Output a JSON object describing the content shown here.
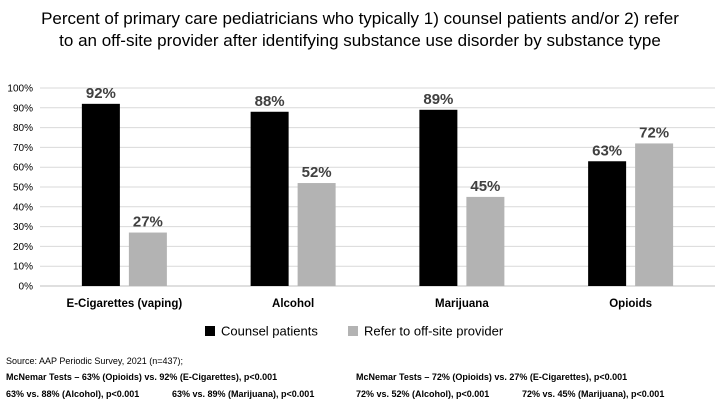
{
  "chart_data": {
    "type": "bar",
    "title": "Percent of primary care pediatricians who typically 1) counsel patients and/or 2) refer to an off-site provider after identifying substance use disorder by substance type",
    "categories": [
      "E-Cigarettes (vaping)",
      "Alcohol",
      "Marijuana",
      "Opioids"
    ],
    "series": [
      {
        "name": "Counsel patients",
        "values": [
          92,
          88,
          89,
          63
        ],
        "data_labels": [
          "92%",
          "88%",
          "89%",
          "63%"
        ],
        "color": "#000000"
      },
      {
        "name": "Refer to off-site provider",
        "values": [
          27,
          52,
          45,
          72
        ],
        "data_labels": [
          "27%",
          "52%",
          "45%",
          "72%"
        ],
        "color": "#b3b3b3"
      }
    ],
    "ylim": [
      0,
      100
    ],
    "yticks": [
      0,
      10,
      20,
      30,
      40,
      50,
      60,
      70,
      80,
      90,
      100
    ],
    "ytick_labels": [
      "0%",
      "10%",
      "20%",
      "30%",
      "40%",
      "50%",
      "60%",
      "70%",
      "80%",
      "90%",
      "100%"
    ],
    "xlabel": "",
    "ylabel": "",
    "grid": true,
    "legend_position": "bottom"
  },
  "footnotes": {
    "source": "Source: AAP Periodic Survey, 2021 (n=437);",
    "left_line1": "McNemar Tests – 63% (Opioids) vs. 92% (E-Cigarettes), p<0.001",
    "left_line2a": "63% vs. 88% (Alcohol), p<0.001",
    "left_line2b": "63% vs. 89% (Marijuana), p<0.001",
    "right_line1": "McNemar Tests – 72% (Opioids) vs. 27% (E-Cigarettes), p<0.001",
    "right_line2a": "72% vs. 52% (Alcohol), p<0.001",
    "right_line2b": "72% vs. 45% (Marijuana), p<0.001"
  },
  "colors": {
    "grid": "#d9d9d9",
    "axis": "#bfbfbf",
    "label_text": "#404040"
  }
}
